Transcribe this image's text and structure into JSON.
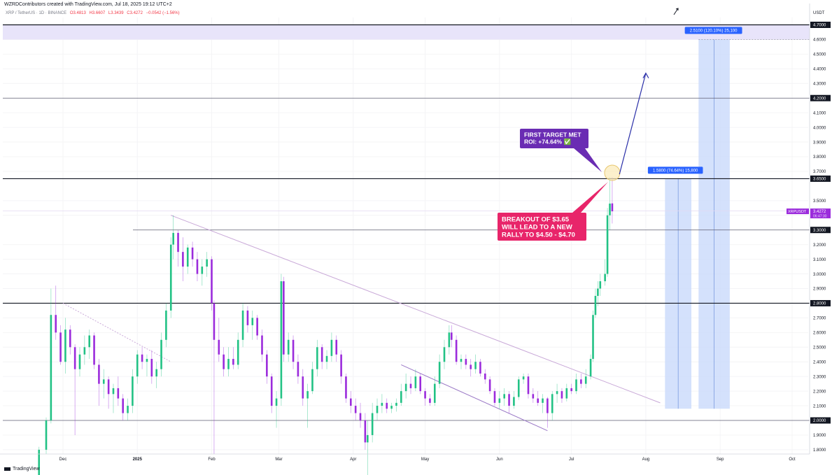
{
  "header": {
    "credit": "WZRDContributors created with TradingView.com, Jul 18, 2025 19:12 UTC+2",
    "symbol": "XRP / TetherUS · 1D · BINANCE",
    "open": "O3.4813",
    "high": "H3.6607",
    "low": "L3.3439",
    "close": "C3.4272",
    "change": "−0.0542 (−1.56%)"
  },
  "footer": {
    "logo_text": "TradingView"
  },
  "price_axis": {
    "currency": "USDT",
    "ticks": [
      "4.6000",
      "4.5000",
      "4.4000",
      "4.3000",
      "4.1000",
      "4.0000",
      "3.9000",
      "3.8000",
      "3.7000",
      "3.5000",
      "3.4000",
      "3.2000",
      "3.1000",
      "3.0000",
      "2.9000",
      "2.7000",
      "2.6000",
      "2.5000",
      "2.4000",
      "2.3000",
      "2.2000",
      "2.1000",
      "1.9000",
      "1.8000"
    ],
    "marked_levels": [
      "4.7000",
      "4.2000",
      "3.6500",
      "3.3000",
      "2.8000",
      "2.0000"
    ],
    "last_price_label": "XRPUSDT",
    "last_price": "3.4272",
    "countdown": "06:47:30"
  },
  "time_axis": {
    "labels": [
      "Dec",
      "2025",
      "Feb",
      "Mar",
      "Apr",
      "May",
      "Jun",
      "Jul",
      "Aug",
      "Sep",
      "Oct"
    ]
  },
  "annotations": {
    "target_box": "FIRST TARGET MET\nROI: +74.64% ✅",
    "breakout_box": "BREAKOUT OF $3.65\nWILL LEAD TO A NEW\nRALLY TO $4.50 - $4.70",
    "range_label_1": "1.5800 (74.64%) 15,800",
    "range_label_2": "2.5100 (120.10%) 25,100"
  },
  "colors": {
    "up": "#22c285",
    "down": "#9b2bdc",
    "target_box": "#6a2cb3",
    "breakout_box": "#e8256a",
    "range_fill": "#c9dafb",
    "range_label": "#2962ff",
    "zone_fill": "#e8e4fa",
    "trend": "#c9a9d8",
    "arrow": "#2a2fa8"
  },
  "chart_data": {
    "type": "candlestick",
    "symbol": "XRP / TetherUS",
    "interval": "1D",
    "exchange": "BINANCE",
    "ylim": [
      1.78,
      4.74
    ],
    "x_range": [
      "2024-11-21",
      "2025-10-06"
    ],
    "horizontal_levels": [
      4.7,
      4.2,
      3.65,
      3.3,
      2.8,
      2.0
    ],
    "target_zone": [
      4.6,
      4.7
    ],
    "trendlines": [
      {
        "from": [
          "2025-01-15",
          3.4
        ],
        "to": [
          "2025-08-07",
          2.12
        ]
      },
      {
        "from": [
          "2024-12-01",
          2.8
        ],
        "to": [
          "2025-01-15",
          2.4
        ]
      },
      {
        "from": [
          "2025-04-21",
          2.38
        ],
        "to": [
          "2025-06-21",
          1.93
        ]
      }
    ],
    "projection_arrow": {
      "from": [
        "2025-07-21",
        3.68
      ],
      "to": [
        "2025-08-01",
        4.37
      ]
    },
    "price_ranges": [
      {
        "from_date": "2025-08-09",
        "to_date": "2025-08-20",
        "low": 2.08,
        "high": 3.65,
        "label": "1.5800 (74.64%) 15,800"
      },
      {
        "from_date": "2025-08-23",
        "to_date": "2025-09-05",
        "low": 2.08,
        "high": 4.6,
        "label": "2.5100 (120.10%) 25,100"
      }
    ],
    "candles": [
      {
        "d": "2024-11-21",
        "o": 1.6,
        "h": 1.82,
        "l": 1.58,
        "c": 1.8
      },
      {
        "d": "2024-11-24",
        "o": 1.8,
        "h": 2.02,
        "l": 1.77,
        "c": 2.0
      },
      {
        "d": "2024-11-26",
        "o": 2.0,
        "h": 2.9,
        "l": 1.98,
        "c": 2.72
      },
      {
        "d": "2024-11-28",
        "o": 2.72,
        "h": 2.92,
        "l": 2.55,
        "c": 2.6
      },
      {
        "d": "2024-11-30",
        "o": 2.6,
        "h": 2.65,
        "l": 2.38,
        "c": 2.4
      },
      {
        "d": "2024-12-02",
        "o": 2.4,
        "h": 2.7,
        "l": 2.32,
        "c": 2.62
      },
      {
        "d": "2024-12-04",
        "o": 2.62,
        "h": 2.65,
        "l": 2.45,
        "c": 2.5
      },
      {
        "d": "2024-12-06",
        "o": 2.5,
        "h": 2.52,
        "l": 1.9,
        "c": 2.35
      },
      {
        "d": "2024-12-08",
        "o": 2.35,
        "h": 2.5,
        "l": 2.3,
        "c": 2.45
      },
      {
        "d": "2024-12-10",
        "o": 2.45,
        "h": 2.58,
        "l": 2.38,
        "c": 2.5
      },
      {
        "d": "2024-12-12",
        "o": 2.5,
        "h": 2.62,
        "l": 2.42,
        "c": 2.58
      },
      {
        "d": "2024-12-14",
        "o": 2.58,
        "h": 2.6,
        "l": 2.35,
        "c": 2.38
      },
      {
        "d": "2024-12-16",
        "o": 2.38,
        "h": 2.42,
        "l": 2.1,
        "c": 2.25
      },
      {
        "d": "2024-12-18",
        "o": 2.25,
        "h": 2.35,
        "l": 2.15,
        "c": 2.28
      },
      {
        "d": "2024-12-20",
        "o": 2.28,
        "h": 2.3,
        "l": 2.08,
        "c": 2.18
      },
      {
        "d": "2024-12-22",
        "o": 2.18,
        "h": 2.25,
        "l": 2.05,
        "c": 2.22
      },
      {
        "d": "2024-12-24",
        "o": 2.22,
        "h": 2.3,
        "l": 2.1,
        "c": 2.15
      },
      {
        "d": "2024-12-26",
        "o": 2.15,
        "h": 2.18,
        "l": 2.0,
        "c": 2.05
      },
      {
        "d": "2024-12-28",
        "o": 2.05,
        "h": 2.15,
        "l": 2.0,
        "c": 2.1
      },
      {
        "d": "2024-12-30",
        "o": 2.1,
        "h": 2.35,
        "l": 2.05,
        "c": 2.3
      },
      {
        "d": "2025-01-01",
        "o": 2.3,
        "h": 2.48,
        "l": 2.25,
        "c": 2.45
      },
      {
        "d": "2025-01-03",
        "o": 2.45,
        "h": 2.5,
        "l": 2.35,
        "c": 2.4
      },
      {
        "d": "2025-01-05",
        "o": 2.4,
        "h": 2.45,
        "l": 2.3,
        "c": 2.42
      },
      {
        "d": "2025-01-07",
        "o": 2.42,
        "h": 2.48,
        "l": 2.25,
        "c": 2.3
      },
      {
        "d": "2025-01-09",
        "o": 2.3,
        "h": 2.4,
        "l": 2.22,
        "c": 2.35
      },
      {
        "d": "2025-01-11",
        "o": 2.35,
        "h": 2.6,
        "l": 2.3,
        "c": 2.55
      },
      {
        "d": "2025-01-13",
        "o": 2.55,
        "h": 2.8,
        "l": 2.5,
        "c": 2.75
      },
      {
        "d": "2025-01-15",
        "o": 2.75,
        "h": 3.25,
        "l": 2.7,
        "c": 3.2
      },
      {
        "d": "2025-01-16",
        "o": 3.2,
        "h": 3.4,
        "l": 3.1,
        "c": 3.28
      },
      {
        "d": "2025-01-18",
        "o": 3.28,
        "h": 3.3,
        "l": 3.05,
        "c": 3.15
      },
      {
        "d": "2025-01-20",
        "o": 3.15,
        "h": 3.25,
        "l": 2.95,
        "c": 3.05
      },
      {
        "d": "2025-01-22",
        "o": 3.05,
        "h": 3.2,
        "l": 3.0,
        "c": 3.18
      },
      {
        "d": "2025-01-24",
        "o": 3.18,
        "h": 3.22,
        "l": 3.05,
        "c": 3.1
      },
      {
        "d": "2025-01-26",
        "o": 3.1,
        "h": 3.15,
        "l": 2.95,
        "c": 3.0
      },
      {
        "d": "2025-01-28",
        "o": 3.0,
        "h": 3.1,
        "l": 2.92,
        "c": 3.05
      },
      {
        "d": "2025-01-30",
        "o": 3.05,
        "h": 3.15,
        "l": 2.98,
        "c": 3.1
      },
      {
        "d": "2025-02-01",
        "o": 3.1,
        "h": 3.12,
        "l": 2.75,
        "c": 2.8
      },
      {
        "d": "2025-02-02",
        "o": 2.8,
        "h": 2.82,
        "l": 1.77,
        "c": 2.55
      },
      {
        "d": "2025-02-04",
        "o": 2.55,
        "h": 2.7,
        "l": 2.4,
        "c": 2.45
      },
      {
        "d": "2025-02-06",
        "o": 2.45,
        "h": 2.5,
        "l": 2.3,
        "c": 2.35
      },
      {
        "d": "2025-02-08",
        "o": 2.35,
        "h": 2.5,
        "l": 2.3,
        "c": 2.42
      },
      {
        "d": "2025-02-10",
        "o": 2.42,
        "h": 2.5,
        "l": 2.35,
        "c": 2.38
      },
      {
        "d": "2025-02-12",
        "o": 2.38,
        "h": 2.6,
        "l": 2.35,
        "c": 2.55
      },
      {
        "d": "2025-02-14",
        "o": 2.55,
        "h": 2.8,
        "l": 2.5,
        "c": 2.75
      },
      {
        "d": "2025-02-16",
        "o": 2.75,
        "h": 2.78,
        "l": 2.6,
        "c": 2.65
      },
      {
        "d": "2025-02-18",
        "o": 2.65,
        "h": 2.75,
        "l": 2.55,
        "c": 2.7
      },
      {
        "d": "2025-02-20",
        "o": 2.7,
        "h": 2.72,
        "l": 2.55,
        "c": 2.58
      },
      {
        "d": "2025-02-22",
        "o": 2.58,
        "h": 2.62,
        "l": 2.4,
        "c": 2.45
      },
      {
        "d": "2025-02-24",
        "o": 2.45,
        "h": 2.48,
        "l": 2.25,
        "c": 2.3
      },
      {
        "d": "2025-02-26",
        "o": 2.3,
        "h": 2.32,
        "l": 2.05,
        "c": 2.1
      },
      {
        "d": "2025-02-28",
        "o": 2.1,
        "h": 2.2,
        "l": 1.95,
        "c": 2.15
      },
      {
        "d": "2025-03-02",
        "o": 2.15,
        "h": 3.0,
        "l": 2.1,
        "c": 2.95
      },
      {
        "d": "2025-03-03",
        "o": 2.95,
        "h": 2.98,
        "l": 2.4,
        "c": 2.45
      },
      {
        "d": "2025-03-05",
        "o": 2.45,
        "h": 2.6,
        "l": 2.4,
        "c": 2.55
      },
      {
        "d": "2025-03-07",
        "o": 2.55,
        "h": 2.58,
        "l": 2.35,
        "c": 2.4
      },
      {
        "d": "2025-03-09",
        "o": 2.4,
        "h": 2.45,
        "l": 2.25,
        "c": 2.3
      },
      {
        "d": "2025-03-11",
        "o": 2.3,
        "h": 2.35,
        "l": 2.1,
        "c": 2.15
      },
      {
        "d": "2025-03-13",
        "o": 2.15,
        "h": 2.25,
        "l": 1.95,
        "c": 2.2
      },
      {
        "d": "2025-03-15",
        "o": 2.2,
        "h": 2.4,
        "l": 2.18,
        "c": 2.35
      },
      {
        "d": "2025-03-17",
        "o": 2.35,
        "h": 2.55,
        "l": 2.3,
        "c": 2.5
      },
      {
        "d": "2025-03-19",
        "o": 2.5,
        "h": 2.52,
        "l": 2.35,
        "c": 2.4
      },
      {
        "d": "2025-03-21",
        "o": 2.4,
        "h": 2.48,
        "l": 2.35,
        "c": 2.44
      },
      {
        "d": "2025-03-23",
        "o": 2.44,
        "h": 2.6,
        "l": 2.4,
        "c": 2.55
      },
      {
        "d": "2025-03-25",
        "o": 2.55,
        "h": 2.58,
        "l": 2.4,
        "c": 2.45
      },
      {
        "d": "2025-03-27",
        "o": 2.45,
        "h": 2.48,
        "l": 2.25,
        "c": 2.3
      },
      {
        "d": "2025-03-29",
        "o": 2.3,
        "h": 2.32,
        "l": 2.12,
        "c": 2.15
      },
      {
        "d": "2025-03-31",
        "o": 2.15,
        "h": 2.2,
        "l": 2.05,
        "c": 2.1
      },
      {
        "d": "2025-04-02",
        "o": 2.1,
        "h": 2.15,
        "l": 2.0,
        "c": 2.05
      },
      {
        "d": "2025-04-04",
        "o": 2.05,
        "h": 2.12,
        "l": 1.95,
        "c": 2.0
      },
      {
        "d": "2025-04-06",
        "o": 2.0,
        "h": 2.05,
        "l": 1.8,
        "c": 1.85
      },
      {
        "d": "2025-04-07",
        "o": 1.85,
        "h": 2.0,
        "l": 1.62,
        "c": 1.9
      },
      {
        "d": "2025-04-09",
        "o": 1.9,
        "h": 2.12,
        "l": 1.85,
        "c": 2.05
      },
      {
        "d": "2025-04-11",
        "o": 2.05,
        "h": 2.15,
        "l": 2.0,
        "c": 2.1
      },
      {
        "d": "2025-04-13",
        "o": 2.1,
        "h": 2.18,
        "l": 2.05,
        "c": 2.12
      },
      {
        "d": "2025-04-15",
        "o": 2.12,
        "h": 2.15,
        "l": 2.05,
        "c": 2.08
      },
      {
        "d": "2025-04-17",
        "o": 2.08,
        "h": 2.12,
        "l": 2.05,
        "c": 2.1
      },
      {
        "d": "2025-04-19",
        "o": 2.1,
        "h": 2.15,
        "l": 2.06,
        "c": 2.12
      },
      {
        "d": "2025-04-21",
        "o": 2.12,
        "h": 2.25,
        "l": 2.1,
        "c": 2.2
      },
      {
        "d": "2025-04-23",
        "o": 2.2,
        "h": 2.32,
        "l": 2.15,
        "c": 2.25
      },
      {
        "d": "2025-04-25",
        "o": 2.25,
        "h": 2.3,
        "l": 2.18,
        "c": 2.22
      },
      {
        "d": "2025-04-27",
        "o": 2.22,
        "h": 2.35,
        "l": 2.2,
        "c": 2.3
      },
      {
        "d": "2025-04-29",
        "o": 2.3,
        "h": 2.32,
        "l": 2.18,
        "c": 2.2
      },
      {
        "d": "2025-05-01",
        "o": 2.2,
        "h": 2.22,
        "l": 2.1,
        "c": 2.15
      },
      {
        "d": "2025-05-03",
        "o": 2.15,
        "h": 2.18,
        "l": 2.1,
        "c": 2.12
      },
      {
        "d": "2025-05-05",
        "o": 2.12,
        "h": 2.3,
        "l": 2.1,
        "c": 2.25
      },
      {
        "d": "2025-05-07",
        "o": 2.25,
        "h": 2.45,
        "l": 2.22,
        "c": 2.4
      },
      {
        "d": "2025-05-09",
        "o": 2.4,
        "h": 2.55,
        "l": 2.35,
        "c": 2.5
      },
      {
        "d": "2025-05-11",
        "o": 2.5,
        "h": 2.65,
        "l": 2.45,
        "c": 2.6
      },
      {
        "d": "2025-05-12",
        "o": 2.6,
        "h": 2.65,
        "l": 2.5,
        "c": 2.55
      },
      {
        "d": "2025-05-14",
        "o": 2.55,
        "h": 2.58,
        "l": 2.38,
        "c": 2.4
      },
      {
        "d": "2025-05-16",
        "o": 2.4,
        "h": 2.45,
        "l": 2.35,
        "c": 2.42
      },
      {
        "d": "2025-05-18",
        "o": 2.42,
        "h": 2.45,
        "l": 2.35,
        "c": 2.38
      },
      {
        "d": "2025-05-20",
        "o": 2.38,
        "h": 2.42,
        "l": 2.3,
        "c": 2.35
      },
      {
        "d": "2025-05-22",
        "o": 2.35,
        "h": 2.45,
        "l": 2.32,
        "c": 2.4
      },
      {
        "d": "2025-05-24",
        "o": 2.4,
        "h": 2.42,
        "l": 2.3,
        "c": 2.32
      },
      {
        "d": "2025-05-26",
        "o": 2.32,
        "h": 2.35,
        "l": 2.25,
        "c": 2.28
      },
      {
        "d": "2025-05-28",
        "o": 2.28,
        "h": 2.3,
        "l": 2.18,
        "c": 2.2
      },
      {
        "d": "2025-05-30",
        "o": 2.2,
        "h": 2.22,
        "l": 2.1,
        "c": 2.12
      },
      {
        "d": "2025-06-01",
        "o": 2.12,
        "h": 2.2,
        "l": 2.08,
        "c": 2.15
      },
      {
        "d": "2025-06-03",
        "o": 2.15,
        "h": 2.22,
        "l": 2.1,
        "c": 2.18
      },
      {
        "d": "2025-06-05",
        "o": 2.18,
        "h": 2.2,
        "l": 2.05,
        "c": 2.1
      },
      {
        "d": "2025-06-07",
        "o": 2.1,
        "h": 2.2,
        "l": 2.08,
        "c": 2.16
      },
      {
        "d": "2025-06-09",
        "o": 2.16,
        "h": 2.3,
        "l": 2.14,
        "c": 2.28
      },
      {
        "d": "2025-06-11",
        "o": 2.28,
        "h": 2.32,
        "l": 2.25,
        "c": 2.3
      },
      {
        "d": "2025-06-13",
        "o": 2.3,
        "h": 2.32,
        "l": 2.15,
        "c": 2.18
      },
      {
        "d": "2025-06-15",
        "o": 2.18,
        "h": 2.22,
        "l": 2.12,
        "c": 2.15
      },
      {
        "d": "2025-06-17",
        "o": 2.15,
        "h": 2.2,
        "l": 2.1,
        "c": 2.12
      },
      {
        "d": "2025-06-19",
        "o": 2.12,
        "h": 2.18,
        "l": 2.05,
        "c": 2.15
      },
      {
        "d": "2025-06-21",
        "o": 2.15,
        "h": 2.16,
        "l": 1.95,
        "c": 2.05
      },
      {
        "d": "2025-06-23",
        "o": 2.05,
        "h": 2.2,
        "l": 2.0,
        "c": 2.18
      },
      {
        "d": "2025-06-25",
        "o": 2.18,
        "h": 2.25,
        "l": 2.12,
        "c": 2.2
      },
      {
        "d": "2025-06-27",
        "o": 2.2,
        "h": 2.22,
        "l": 2.12,
        "c": 2.15
      },
      {
        "d": "2025-06-29",
        "o": 2.15,
        "h": 2.25,
        "l": 2.13,
        "c": 2.22
      },
      {
        "d": "2025-07-01",
        "o": 2.22,
        "h": 2.25,
        "l": 2.18,
        "c": 2.2
      },
      {
        "d": "2025-07-03",
        "o": 2.2,
        "h": 2.32,
        "l": 2.18,
        "c": 2.28
      },
      {
        "d": "2025-07-05",
        "o": 2.28,
        "h": 2.32,
        "l": 2.22,
        "c": 2.25
      },
      {
        "d": "2025-07-07",
        "o": 2.25,
        "h": 2.35,
        "l": 2.22,
        "c": 2.3
      },
      {
        "d": "2025-07-09",
        "o": 2.3,
        "h": 2.45,
        "l": 2.28,
        "c": 2.42
      },
      {
        "d": "2025-07-10",
        "o": 2.42,
        "h": 2.75,
        "l": 2.4,
        "c": 2.72
      },
      {
        "d": "2025-07-11",
        "o": 2.72,
        "h": 2.9,
        "l": 2.7,
        "c": 2.85
      },
      {
        "d": "2025-07-12",
        "o": 2.85,
        "h": 2.95,
        "l": 2.78,
        "c": 2.9
      },
      {
        "d": "2025-07-13",
        "o": 2.9,
        "h": 3.0,
        "l": 2.85,
        "c": 2.95
      },
      {
        "d": "2025-07-15",
        "o": 2.95,
        "h": 3.1,
        "l": 2.92,
        "c": 3.0
      },
      {
        "d": "2025-07-16",
        "o": 3.0,
        "h": 3.45,
        "l": 2.98,
        "c": 3.4
      },
      {
        "d": "2025-07-17",
        "o": 3.4,
        "h": 3.66,
        "l": 3.3,
        "c": 3.48
      },
      {
        "d": "2025-07-18",
        "o": 3.4813,
        "h": 3.6607,
        "l": 3.3439,
        "c": 3.4272
      }
    ]
  }
}
